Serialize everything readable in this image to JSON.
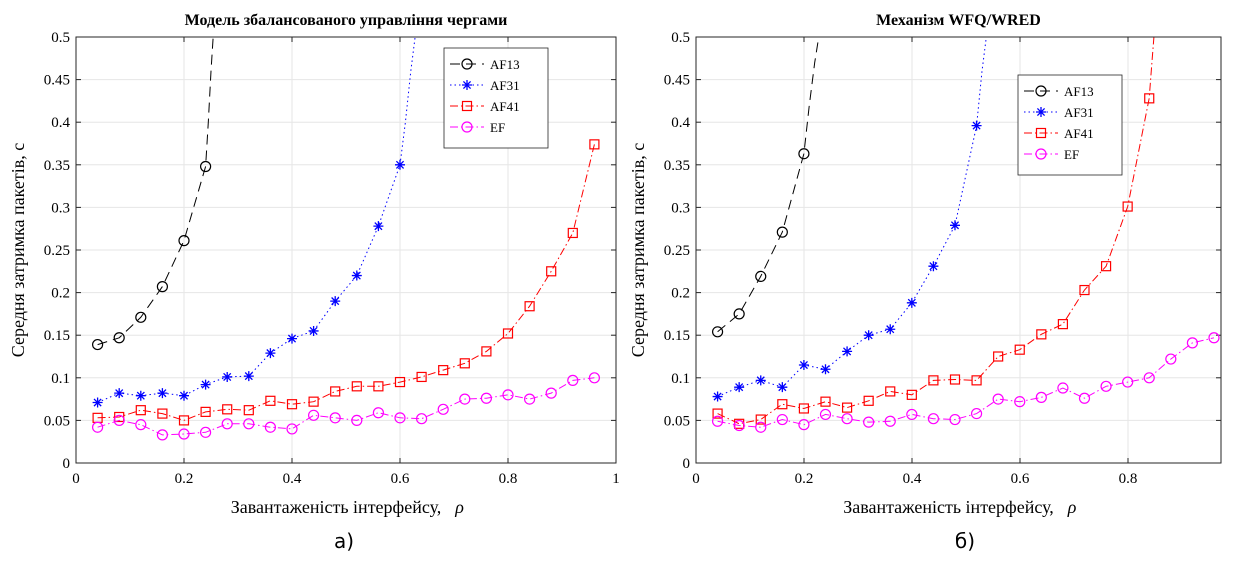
{
  "chart_data": [
    {
      "type": "line",
      "title": "Модель збалансованого управління чергами",
      "xlabel": "Завантаженість інтерфейсу,",
      "xlabel_symbol": "ρ",
      "ylabel": "Середня затримка пакетів, с",
      "xlim": [
        0,
        1
      ],
      "ylim": [
        0,
        0.5
      ],
      "xticks": [
        "0",
        "0.2",
        "0.4",
        "0.6",
        "0.8",
        "1"
      ],
      "yticks": [
        "0",
        "0.05",
        "0.1",
        "0.15",
        "0.2",
        "0.25",
        "0.3",
        "0.35",
        "0.4",
        "0.45",
        "0.5"
      ],
      "grid": true,
      "legend_position": "top-right",
      "panel_label": "а)",
      "series": [
        {
          "name": "AF13",
          "color": "#000000",
          "marker": "circle",
          "dash": "10,6",
          "x": [
            0.04,
            0.08,
            0.12,
            0.16,
            0.2,
            0.24
          ],
          "y": [
            0.139,
            0.147,
            0.171,
            0.207,
            0.261,
            0.348
          ],
          "tail_x": [
            0.245,
            0.25,
            0.255
          ],
          "tail_y": [
            0.4,
            0.46,
            0.51
          ]
        },
        {
          "name": "AF31",
          "color": "#0000ff",
          "marker": "asterisk",
          "dash": "1.5,3",
          "x": [
            0.04,
            0.08,
            0.12,
            0.16,
            0.2,
            0.24,
            0.28,
            0.32,
            0.36,
            0.4,
            0.44,
            0.48,
            0.52,
            0.56,
            0.6
          ],
          "y": [
            0.071,
            0.082,
            0.079,
            0.082,
            0.079,
            0.092,
            0.101,
            0.102,
            0.129,
            0.146,
            0.155,
            0.19,
            0.22,
            0.278,
            0.35
          ],
          "tail_x": [
            0.61,
            0.62,
            0.63
          ],
          "tail_y": [
            0.4,
            0.46,
            0.51
          ]
        },
        {
          "name": "AF41",
          "color": "#ff0000",
          "marker": "square",
          "dash": "8,3,1.5,3",
          "x": [
            0.04,
            0.08,
            0.12,
            0.16,
            0.2,
            0.24,
            0.28,
            0.32,
            0.36,
            0.4,
            0.44,
            0.48,
            0.52,
            0.56,
            0.6,
            0.64,
            0.68,
            0.72,
            0.76,
            0.8,
            0.84,
            0.88,
            0.92,
            0.96
          ],
          "y": [
            0.053,
            0.054,
            0.062,
            0.058,
            0.05,
            0.06,
            0.063,
            0.062,
            0.073,
            0.069,
            0.072,
            0.084,
            0.09,
            0.09,
            0.095,
            0.101,
            0.109,
            0.117,
            0.131,
            0.152,
            0.184,
            0.225,
            0.27,
            0.374
          ],
          "tail_x": [],
          "tail_y": []
        },
        {
          "name": "EF",
          "color": "#ff00ff",
          "marker": "circle",
          "dash": "8,3,1.5,3",
          "x": [
            0.04,
            0.08,
            0.12,
            0.16,
            0.2,
            0.24,
            0.28,
            0.32,
            0.36,
            0.4,
            0.44,
            0.48,
            0.52,
            0.56,
            0.6,
            0.64,
            0.68,
            0.72,
            0.76,
            0.8,
            0.84,
            0.88,
            0.92,
            0.96
          ],
          "y": [
            0.042,
            0.05,
            0.045,
            0.033,
            0.034,
            0.036,
            0.046,
            0.046,
            0.042,
            0.04,
            0.056,
            0.053,
            0.05,
            0.059,
            0.053,
            0.052,
            0.063,
            0.075,
            0.076,
            0.08,
            0.075,
            0.082,
            0.097,
            0.1
          ],
          "tail_x": [],
          "tail_y": []
        }
      ]
    },
    {
      "type": "line",
      "title": "Механізм WFQ/WRED",
      "xlabel": "Завантаженість інтерфейсу,",
      "xlabel_symbol": "ρ",
      "ylabel": "Середня затримка пакетів, с",
      "xlim": [
        0,
        0.973
      ],
      "ylim": [
        0,
        0.5
      ],
      "xticks": [
        "0",
        "0.2",
        "0.4",
        "0.6",
        "0.8"
      ],
      "yticks": [
        "0",
        "0.05",
        "0.1",
        "0.15",
        "0.2",
        "0.25",
        "0.3",
        "0.35",
        "0.4",
        "0.45",
        "0.5"
      ],
      "grid": true,
      "legend_position": "top-right",
      "panel_label": "б)",
      "series": [
        {
          "name": "AF13",
          "color": "#000000",
          "marker": "circle",
          "dash": "10,6",
          "x": [
            0.04,
            0.08,
            0.12,
            0.16,
            0.2
          ],
          "y": [
            0.154,
            0.175,
            0.219,
            0.271,
            0.363
          ],
          "tail_x": [
            0.21,
            0.22,
            0.23
          ],
          "tail_y": [
            0.42,
            0.47,
            0.51
          ]
        },
        {
          "name": "AF31",
          "color": "#0000ff",
          "marker": "asterisk",
          "dash": "1.5,3",
          "x": [
            0.04,
            0.08,
            0.12,
            0.16,
            0.2,
            0.24,
            0.28,
            0.32,
            0.36,
            0.4,
            0.44,
            0.48,
            0.52
          ],
          "y": [
            0.078,
            0.089,
            0.097,
            0.089,
            0.115,
            0.11,
            0.131,
            0.15,
            0.157,
            0.188,
            0.231,
            0.279,
            0.396
          ],
          "tail_x": [
            0.53,
            0.54
          ],
          "tail_y": [
            0.46,
            0.51
          ]
        },
        {
          "name": "AF41",
          "color": "#ff0000",
          "marker": "square",
          "dash": "8,3,1.5,3",
          "x": [
            0.04,
            0.08,
            0.12,
            0.16,
            0.2,
            0.24,
            0.28,
            0.32,
            0.36,
            0.4,
            0.44,
            0.48,
            0.52,
            0.56,
            0.6,
            0.64,
            0.68,
            0.72,
            0.76,
            0.8,
            0.84
          ],
          "y": [
            0.058,
            0.046,
            0.051,
            0.069,
            0.064,
            0.072,
            0.065,
            0.073,
            0.084,
            0.08,
            0.097,
            0.098,
            0.097,
            0.125,
            0.133,
            0.151,
            0.163,
            0.203,
            0.231,
            0.301,
            0.428
          ],
          "tail_x": [
            0.845,
            0.85
          ],
          "tail_y": [
            0.47,
            0.51
          ]
        },
        {
          "name": "EF",
          "color": "#ff00ff",
          "marker": "circle",
          "dash": "8,3,1.5,3",
          "x": [
            0.04,
            0.08,
            0.12,
            0.16,
            0.2,
            0.24,
            0.28,
            0.32,
            0.36,
            0.4,
            0.44,
            0.48,
            0.52,
            0.56,
            0.6,
            0.64,
            0.68,
            0.72,
            0.76,
            0.8,
            0.84,
            0.88,
            0.92,
            0.96
          ],
          "y": [
            0.049,
            0.044,
            0.042,
            0.051,
            0.045,
            0.057,
            0.052,
            0.048,
            0.049,
            0.057,
            0.052,
            0.051,
            0.058,
            0.075,
            0.072,
            0.077,
            0.088,
            0.076,
            0.09,
            0.095,
            0.1,
            0.122,
            0.141,
            0.147
          ],
          "tail_x": [],
          "tail_y": []
        }
      ]
    }
  ]
}
